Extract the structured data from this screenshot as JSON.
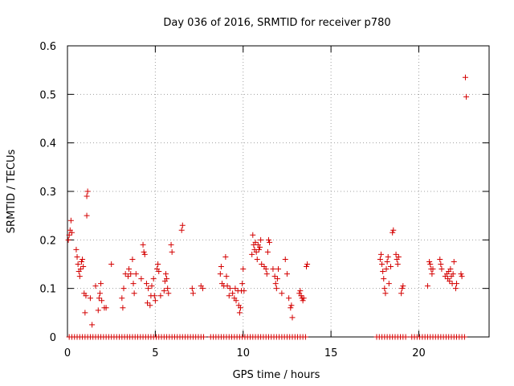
{
  "chart_data": {
    "type": "scatter",
    "title": "Day 036 of 2016, SRMTID for receiver p780",
    "xlabel": "GPS time / hours",
    "ylabel": "SRMTID / TECUs",
    "xlim": [
      0,
      24
    ],
    "ylim": [
      0,
      0.6
    ],
    "xticks": [
      0,
      5,
      10,
      15,
      20
    ],
    "yticks": [
      0,
      0.1,
      0.2,
      0.3,
      0.4,
      0.5,
      0.6
    ],
    "xtick_labels": [
      "0",
      "5",
      "10",
      "15",
      "20"
    ],
    "ytick_labels": [
      "0",
      "0.1",
      "0.2",
      "0.3",
      "0.4",
      "0.5",
      "0.6"
    ],
    "grid": true,
    "series": [
      {
        "name": "SRMTID",
        "color": "#d40000",
        "marker": "plus",
        "points": [
          [
            0.05,
            0.2
          ],
          [
            0.1,
            0.21
          ],
          [
            0.15,
            0.22
          ],
          [
            0.2,
            0.24
          ],
          [
            0.25,
            0.215
          ],
          [
            0.5,
            0.18
          ],
          [
            0.55,
            0.165
          ],
          [
            0.6,
            0.15
          ],
          [
            0.65,
            0.135
          ],
          [
            0.7,
            0.125
          ],
          [
            0.75,
            0.14
          ],
          [
            0.8,
            0.155
          ],
          [
            0.85,
            0.16
          ],
          [
            0.9,
            0.145
          ],
          [
            0.95,
            0.09
          ],
          [
            1.0,
            0.05
          ],
          [
            1.05,
            0.085
          ],
          [
            1.1,
            0.25
          ],
          [
            1.1,
            0.29
          ],
          [
            1.15,
            0.3
          ],
          [
            1.3,
            0.08
          ],
          [
            1.4,
            0.025
          ],
          [
            1.6,
            0.105
          ],
          [
            1.75,
            0.055
          ],
          [
            1.8,
            0.08
          ],
          [
            1.85,
            0.09
          ],
          [
            1.9,
            0.11
          ],
          [
            1.95,
            0.075
          ],
          [
            2.1,
            0.06
          ],
          [
            2.2,
            0.06
          ],
          [
            2.5,
            0.15
          ],
          [
            3.1,
            0.08
          ],
          [
            3.15,
            0.06
          ],
          [
            3.2,
            0.1
          ],
          [
            3.3,
            0.13
          ],
          [
            3.45,
            0.125
          ],
          [
            3.5,
            0.14
          ],
          [
            3.6,
            0.13
          ],
          [
            3.7,
            0.16
          ],
          [
            3.75,
            0.11
          ],
          [
            3.8,
            0.09
          ],
          [
            3.9,
            0.13
          ],
          [
            4.2,
            0.12
          ],
          [
            4.3,
            0.19
          ],
          [
            4.35,
            0.175
          ],
          [
            4.4,
            0.17
          ],
          [
            4.5,
            0.11
          ],
          [
            4.55,
            0.07
          ],
          [
            4.6,
            0.1
          ],
          [
            4.7,
            0.065
          ],
          [
            4.75,
            0.085
          ],
          [
            4.8,
            0.105
          ],
          [
            4.9,
            0.12
          ],
          [
            4.95,
            0.085
          ],
          [
            5.0,
            0.075
          ],
          [
            5.1,
            0.14
          ],
          [
            5.15,
            0.15
          ],
          [
            5.2,
            0.135
          ],
          [
            5.3,
            0.085
          ],
          [
            5.5,
            0.095
          ],
          [
            5.55,
            0.115
          ],
          [
            5.6,
            0.13
          ],
          [
            5.65,
            0.12
          ],
          [
            5.7,
            0.1
          ],
          [
            5.75,
            0.09
          ],
          [
            5.9,
            0.19
          ],
          [
            5.95,
            0.175
          ],
          [
            6.5,
            0.22
          ],
          [
            6.55,
            0.23
          ],
          [
            7.1,
            0.1
          ],
          [
            7.15,
            0.09
          ],
          [
            7.6,
            0.105
          ],
          [
            7.7,
            0.1
          ],
          [
            8.7,
            0.13
          ],
          [
            8.75,
            0.145
          ],
          [
            8.8,
            0.11
          ],
          [
            8.9,
            0.105
          ],
          [
            9.0,
            0.165
          ],
          [
            9.05,
            0.125
          ],
          [
            9.1,
            0.105
          ],
          [
            9.2,
            0.085
          ],
          [
            9.25,
            0.1
          ],
          [
            9.4,
            0.09
          ],
          [
            9.5,
            0.08
          ],
          [
            9.55,
            0.1
          ],
          [
            9.6,
            0.075
          ],
          [
            9.7,
            0.095
          ],
          [
            9.75,
            0.065
          ],
          [
            9.8,
            0.05
          ],
          [
            9.85,
            0.06
          ],
          [
            9.9,
            0.095
          ],
          [
            9.95,
            0.11
          ],
          [
            10.0,
            0.14
          ],
          [
            10.05,
            0.095
          ],
          [
            10.5,
            0.17
          ],
          [
            10.55,
            0.21
          ],
          [
            10.6,
            0.19
          ],
          [
            10.65,
            0.18
          ],
          [
            10.7,
            0.195
          ],
          [
            10.75,
            0.175
          ],
          [
            10.8,
            0.16
          ],
          [
            10.85,
            0.19
          ],
          [
            10.9,
            0.18
          ],
          [
            10.95,
            0.185
          ],
          [
            11.0,
            0.2
          ],
          [
            11.05,
            0.15
          ],
          [
            11.2,
            0.145
          ],
          [
            11.3,
            0.14
          ],
          [
            11.35,
            0.13
          ],
          [
            11.4,
            0.175
          ],
          [
            11.45,
            0.2
          ],
          [
            11.5,
            0.195
          ],
          [
            11.7,
            0.14
          ],
          [
            11.8,
            0.125
          ],
          [
            11.85,
            0.11
          ],
          [
            11.9,
            0.1
          ],
          [
            11.95,
            0.12
          ],
          [
            12.0,
            0.14
          ],
          [
            12.2,
            0.09
          ],
          [
            12.4,
            0.16
          ],
          [
            12.5,
            0.13
          ],
          [
            12.6,
            0.08
          ],
          [
            12.7,
            0.06
          ],
          [
            12.75,
            0.065
          ],
          [
            12.8,
            0.04
          ],
          [
            13.2,
            0.09
          ],
          [
            13.25,
            0.095
          ],
          [
            13.3,
            0.085
          ],
          [
            13.35,
            0.08
          ],
          [
            13.4,
            0.075
          ],
          [
            13.45,
            0.08
          ],
          [
            13.6,
            0.145
          ],
          [
            13.65,
            0.15
          ],
          [
            17.8,
            0.16
          ],
          [
            17.85,
            0.17
          ],
          [
            17.9,
            0.15
          ],
          [
            17.95,
            0.135
          ],
          [
            18.0,
            0.12
          ],
          [
            18.05,
            0.1
          ],
          [
            18.1,
            0.09
          ],
          [
            18.15,
            0.14
          ],
          [
            18.2,
            0.155
          ],
          [
            18.25,
            0.165
          ],
          [
            18.3,
            0.11
          ],
          [
            18.4,
            0.145
          ],
          [
            18.5,
            0.215
          ],
          [
            18.55,
            0.22
          ],
          [
            18.7,
            0.17
          ],
          [
            18.75,
            0.16
          ],
          [
            18.8,
            0.15
          ],
          [
            18.85,
            0.165
          ],
          [
            19.0,
            0.09
          ],
          [
            19.05,
            0.1
          ],
          [
            19.1,
            0.105
          ],
          [
            20.5,
            0.105
          ],
          [
            20.6,
            0.155
          ],
          [
            20.65,
            0.15
          ],
          [
            20.7,
            0.14
          ],
          [
            20.75,
            0.13
          ],
          [
            20.8,
            0.14
          ],
          [
            21.2,
            0.16
          ],
          [
            21.25,
            0.15
          ],
          [
            21.3,
            0.14
          ],
          [
            21.5,
            0.125
          ],
          [
            21.6,
            0.13
          ],
          [
            21.65,
            0.12
          ],
          [
            21.7,
            0.135
          ],
          [
            21.75,
            0.115
          ],
          [
            21.8,
            0.14
          ],
          [
            21.85,
            0.125
          ],
          [
            21.9,
            0.11
          ],
          [
            21.95,
            0.13
          ],
          [
            22.0,
            0.155
          ],
          [
            22.1,
            0.1
          ],
          [
            22.15,
            0.11
          ],
          [
            22.4,
            0.13
          ],
          [
            22.45,
            0.125
          ],
          [
            22.65,
            0.535
          ],
          [
            22.7,
            0.495
          ]
        ],
        "zero_points_x": [
          0.1,
          0.25,
          0.4,
          0.55,
          0.7,
          0.85,
          1.0,
          1.15,
          1.3,
          1.45,
          1.6,
          1.75,
          1.9,
          2.05,
          2.2,
          2.35,
          2.5,
          2.65,
          2.8,
          2.95,
          3.1,
          3.25,
          3.4,
          3.55,
          3.7,
          3.85,
          4.0,
          4.15,
          4.3,
          4.45,
          4.6,
          4.75,
          4.9,
          5.05,
          5.2,
          5.35,
          5.5,
          5.65,
          5.8,
          5.95,
          6.1,
          6.25,
          6.4,
          6.55,
          6.7,
          6.85,
          7.0,
          7.15,
          7.3,
          7.45,
          7.6,
          7.75,
          8.15,
          8.3,
          8.45,
          8.6,
          8.75,
          8.9,
          9.05,
          9.2,
          9.35,
          9.5,
          9.65,
          9.8,
          9.95,
          10.1,
          10.25,
          10.4,
          10.55,
          10.7,
          10.85,
          11.0,
          11.15,
          11.3,
          11.45,
          11.6,
          11.75,
          11.9,
          12.05,
          12.2,
          12.35,
          12.5,
          12.65,
          12.8,
          12.95,
          13.1,
          13.25,
          13.4,
          13.55,
          17.6,
          17.75,
          17.9,
          18.05,
          18.2,
          18.35,
          18.5,
          18.65,
          18.8,
          18.95,
          19.1,
          19.25,
          19.6,
          19.75,
          19.9,
          20.05,
          20.2,
          20.35,
          20.5,
          20.65,
          20.8,
          20.95,
          21.1,
          21.25,
          21.4,
          21.55,
          21.7,
          21.85,
          22.0,
          22.15,
          22.3,
          22.45,
          22.6
        ]
      }
    ]
  }
}
